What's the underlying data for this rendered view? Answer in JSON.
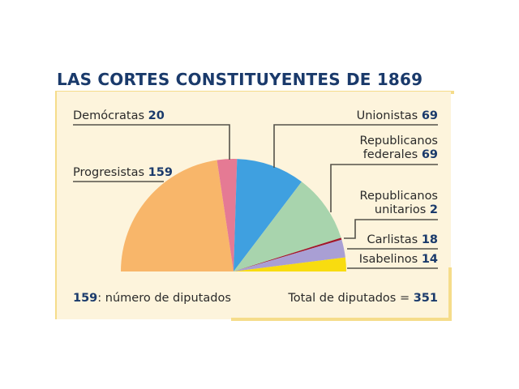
{
  "title": "LAS CORTES CONSTITUYENTES DE 1869",
  "labels": {
    "democratas": {
      "name": "Demócratas",
      "value": "20"
    },
    "progresistas": {
      "name": "Progresistas",
      "value": "159"
    },
    "unionistas": {
      "name": "Unionistas",
      "value": "69"
    },
    "federales": {
      "name_line1": "Republicanos",
      "name_line2": "federales",
      "value": "69"
    },
    "unitarios": {
      "name_line1": "Republicanos",
      "name_line2": "unitarios",
      "value": "2"
    },
    "carlistas": {
      "name": "Carlistas",
      "value": "18"
    },
    "isabelinos": {
      "name": "Isabelinos",
      "value": "14"
    }
  },
  "footer": {
    "legend_number": "159",
    "legend_text": ": número de diputados",
    "total_text": "Total de diputados = ",
    "total_value": "351"
  },
  "colors": {
    "progresistas": "#f8b66a",
    "democratas": "#e57a94",
    "unionistas": "#3fa0e0",
    "federales": "#a8d4ad",
    "unitarios": "#a0162a",
    "carlistas": "#a99fd4",
    "isabelinos": "#f8dc10",
    "title": "#1a3a6b",
    "panel": "#fdf4dc",
    "frame": "#f5dc8a"
  },
  "chart_data": {
    "type": "pie",
    "subtype": "semicircle (parliament)",
    "title": "LAS CORTES CONSTITUYENTES DE 1869",
    "categories": [
      "Progresistas",
      "Demócratas",
      "Unionistas",
      "Republicanos federales",
      "Republicanos unitarios",
      "Carlistas",
      "Isabelinos"
    ],
    "values": [
      159,
      20,
      69,
      69,
      2,
      18,
      14
    ],
    "total": 351,
    "legend_note": "159: número de diputados",
    "annotation": "Total de diputados = 351"
  }
}
